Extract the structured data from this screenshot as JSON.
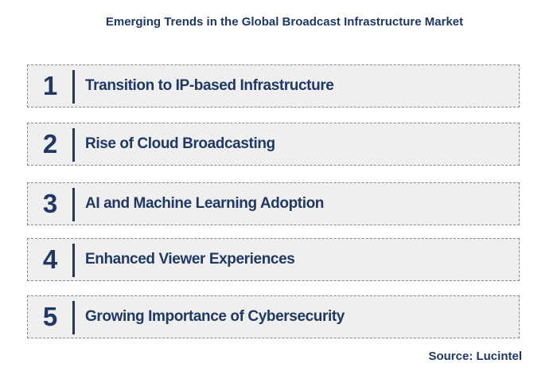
{
  "title": "Emerging Trends in the Global Broadcast Infrastructure Market",
  "trends": [
    {
      "number": "1",
      "label": "Transition to IP-based Infrastructure"
    },
    {
      "number": "2",
      "label": "Rise of Cloud Broadcasting"
    },
    {
      "number": "3",
      "label": "AI and Machine Learning Adoption"
    },
    {
      "number": "4",
      "label": "Enhanced Viewer Experiences"
    },
    {
      "number": "5",
      "label": "Growing Importance of Cybersecurity"
    }
  ],
  "source": "Source: Lucintel",
  "colors": {
    "text": "#1f3864",
    "box_fill": "#efefef",
    "box_border": "#8a8a8a"
  }
}
